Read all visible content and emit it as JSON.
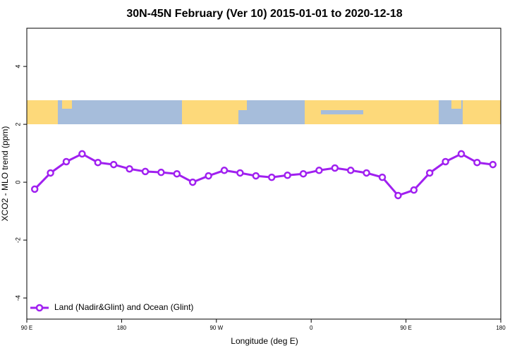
{
  "chart_data": {
    "type": "line",
    "title": "30N-45N February (Ver 10)   2015-01-01 to 2020-12-18",
    "x_label": "Longitude (deg E)",
    "y_label": "XCO2 - MLO trend (ppm)",
    "x": [
      97.5,
      112.5,
      127.5,
      142.5,
      157.5,
      172.5,
      187.5,
      202.5,
      217.5,
      232.5,
      247.5,
      262.5,
      277.5,
      292.5,
      307.5,
      322.5,
      337.5,
      352.5,
      367.5,
      382.5,
      397.5,
      412.5,
      427.5,
      442.5,
      457.5,
      472.5,
      487.5,
      502.5,
      517.5,
      532.5
    ],
    "series": [
      {
        "name": "Land (Nadir&Glint) and Ocean (Glint)",
        "color": "#a020f0",
        "values": [
          -0.24,
          0.32,
          0.71,
          0.98,
          0.68,
          0.61,
          0.46,
          0.37,
          0.34,
          0.29,
          0.0,
          0.22,
          0.41,
          0.32,
          0.22,
          0.17,
          0.24,
          0.29,
          0.41,
          0.49,
          0.41,
          0.32,
          0.17,
          -0.46,
          -0.27,
          0.32,
          0.71,
          0.98,
          0.68,
          0.61
        ]
      }
    ],
    "xlim": [
      90,
      540
    ],
    "xticks": [
      {
        "value": 90,
        "label": "90 E"
      },
      {
        "value": 180,
        "label": "180"
      },
      {
        "value": 270,
        "label": "90 W"
      },
      {
        "value": 360,
        "label": "0"
      },
      {
        "value": 450,
        "label": "90 E"
      },
      {
        "value": 540,
        "label": "180"
      }
    ],
    "ylim": [
      -4.73,
      5.32
    ],
    "yticks": [
      -4,
      -2,
      0,
      2,
      4
    ],
    "legend": "bottom-left"
  }
}
